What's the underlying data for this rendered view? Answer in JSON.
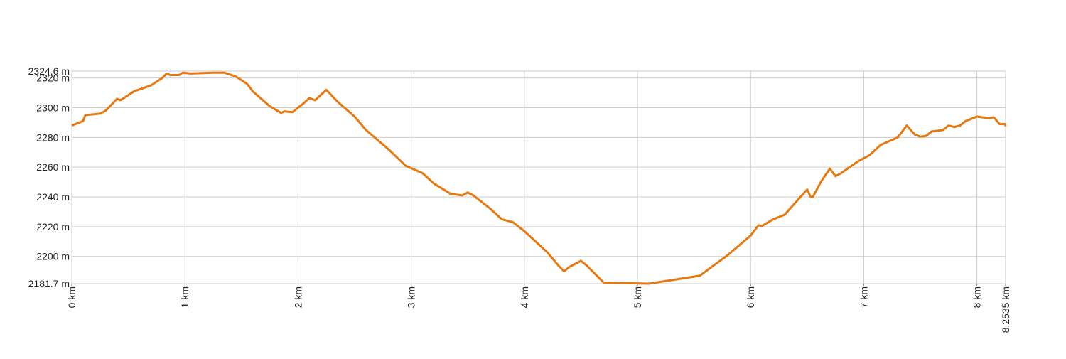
{
  "chart_data": {
    "type": "line",
    "x": [
      0,
      0.1,
      0.12,
      0.25,
      0.3,
      0.4,
      0.43,
      0.55,
      0.7,
      0.8,
      0.84,
      0.87,
      0.95,
      0.98,
      1.05,
      1.25,
      1.35,
      1.45,
      1.55,
      1.6,
      1.75,
      1.85,
      1.88,
      1.95,
      2.05,
      2.1,
      2.15,
      2.25,
      2.35,
      2.5,
      2.6,
      2.8,
      2.95,
      3.1,
      3.2,
      3.35,
      3.45,
      3.5,
      3.55,
      3.7,
      3.8,
      3.9,
      4.0,
      4.1,
      4.2,
      4.3,
      4.35,
      4.4,
      4.5,
      4.55,
      4.7,
      4.9,
      5.1,
      5.55,
      5.8,
      6.0,
      6.07,
      6.1,
      6.2,
      6.3,
      6.5,
      6.53,
      6.55,
      6.62,
      6.7,
      6.75,
      6.8,
      6.95,
      7.05,
      7.15,
      7.3,
      7.38,
      7.45,
      7.5,
      7.55,
      7.6,
      7.7,
      7.75,
      7.8,
      7.85,
      7.9,
      8.0,
      8.1,
      8.15,
      8.2,
      8.25,
      8.2535
    ],
    "series": [
      {
        "color": "#e8780e",
        "values": [
          2288,
          2291,
          2295,
          2296,
          2298,
          2306,
          2305,
          2311,
          2315,
          2320,
          2323,
          2322,
          2322,
          2323.5,
          2323,
          2323.5,
          2323.5,
          2321,
          2316,
          2311,
          2301,
          2296.5,
          2297.5,
          2297,
          2303,
          2306.5,
          2305,
          2312,
          2304,
          2294,
          2285,
          2272,
          2261,
          2256,
          2249,
          2242,
          2241,
          2243,
          2241,
          2232,
          2225,
          2223,
          2217,
          2210,
          2203,
          2194,
          2190,
          2193,
          2197,
          2194,
          2182.5,
          2182,
          2181.7,
          2187,
          2201,
          2214,
          2221,
          2220.5,
          2225,
          2228,
          2245,
          2240,
          2240,
          2250,
          2259,
          2254,
          2256,
          2264,
          2268,
          2275,
          2280,
          2288,
          2282,
          2280.5,
          2281,
          2284,
          2285,
          2288,
          2287,
          2288,
          2291,
          2294,
          2293,
          2293.5,
          2289,
          2289,
          2287.5
        ]
      }
    ],
    "xlim": [
      0,
      8.2535
    ],
    "xticks": [
      {
        "value": 0,
        "label": "0 km"
      },
      {
        "value": 1,
        "label": "1 km"
      },
      {
        "value": 2,
        "label": "2 km"
      },
      {
        "value": 3,
        "label": "3 km"
      },
      {
        "value": 4,
        "label": "4 km"
      },
      {
        "value": 5,
        "label": "5 km"
      },
      {
        "value": 6,
        "label": "6 km"
      },
      {
        "value": 7,
        "label": "7 km"
      },
      {
        "value": 8,
        "label": "8 km"
      },
      {
        "value": 8.2535,
        "label": "8.2535 km"
      }
    ],
    "ylim": [
      2181.7,
      2324.6
    ],
    "yticks": [
      {
        "value": 2181.7,
        "label": "2181.7 m"
      },
      {
        "value": 2200,
        "label": "2200 m"
      },
      {
        "value": 2220,
        "label": "2220 m"
      },
      {
        "value": 2240,
        "label": "2240 m"
      },
      {
        "value": 2260,
        "label": "2260 m"
      },
      {
        "value": 2280,
        "label": "2280 m"
      },
      {
        "value": 2300,
        "label": "2300 m"
      },
      {
        "value": 2320,
        "label": "2320 m"
      },
      {
        "value": 2324.6,
        "label": "2324.6 m"
      }
    ],
    "grid": true
  }
}
